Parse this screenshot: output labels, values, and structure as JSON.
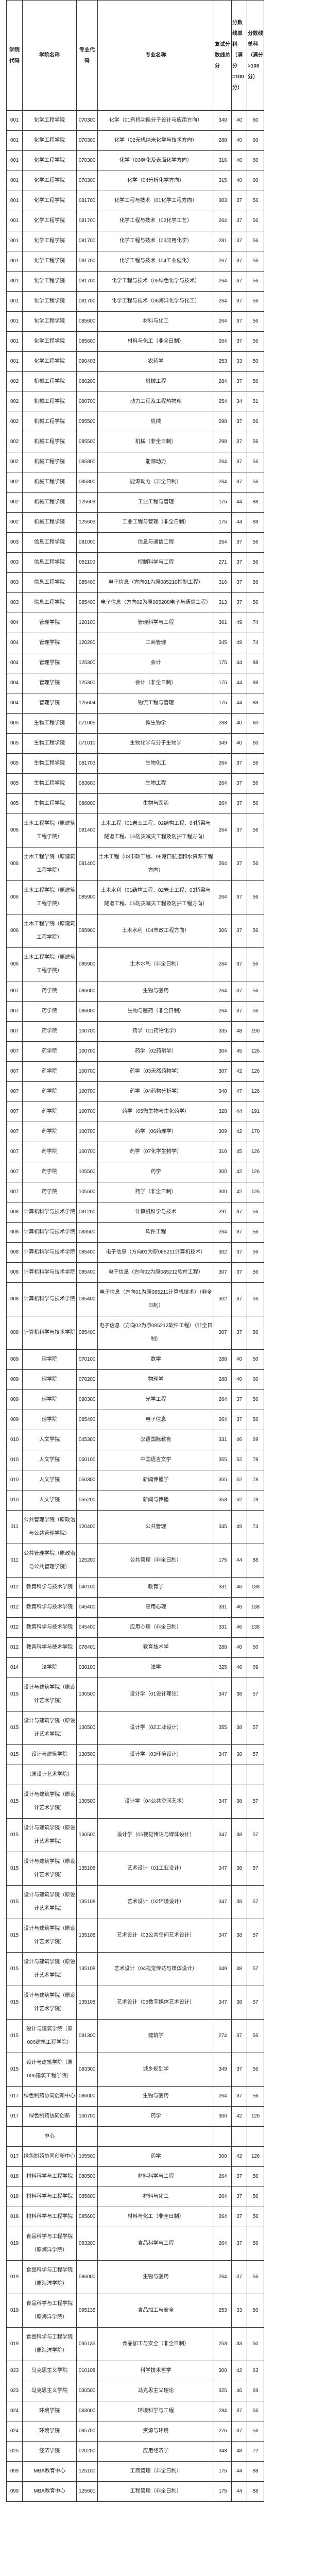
{
  "header": {
    "college_code": "学院代码",
    "college_name": "学院名称",
    "major_code": "专业代码",
    "major_name": "专业名称",
    "total_score": "复试分数线总分",
    "single_100": "分数线单科（满分=100分）",
    "single_over_100": "分数线单科（满分>100分）"
  },
  "rows": [
    [
      "001",
      "化学工程学院",
      "070300",
      "化学（01有机功能分子设计与应用方向）",
      "340",
      "40",
      "60"
    ],
    [
      "001",
      "化学工程学院",
      "070300",
      "化学（02无机纳米化学与技术方向）",
      "288",
      "40",
      "60"
    ],
    [
      "001",
      "化学工程学院",
      "070300",
      "化学（03催化及表面化学方向）",
      "316",
      "40",
      "60"
    ],
    [
      "001",
      "化学工程学院",
      "070300",
      "化学（04分析化学方向）",
      "315",
      "40",
      "60"
    ],
    [
      "001",
      "化学工程学院",
      "081700",
      "化学工程与技术（01化学工程方向）",
      "303",
      "37",
      "56"
    ],
    [
      "001",
      "化学工程学院",
      "081700",
      "化学工程与技术（02化学工艺）",
      "264",
      "37",
      "56"
    ],
    [
      "001",
      "化学工程学院",
      "081700",
      "化学工程与技术（03应用化学）",
      "281",
      "37",
      "56"
    ],
    [
      "001",
      "化学工程学院",
      "081700",
      "化学工程与技术（04工业催化）",
      "267",
      "37",
      "56"
    ],
    [
      "001",
      "化学工程学院",
      "081700",
      "化学工程与技术（05绿色化学与技术）",
      "264",
      "37",
      "56"
    ],
    [
      "001",
      "化学工程学院",
      "081700",
      "化学工程与技术（06海洋化学与化工）",
      "264",
      "37",
      "56"
    ],
    [
      "001",
      "化学工程学院",
      "085600",
      "材料与化工",
      "264",
      "37",
      "56"
    ],
    [
      "001",
      "化学工程学院",
      "085600",
      "材料与化工（非全日制）",
      "264",
      "37",
      "56"
    ],
    [
      "001",
      "化学工程学院",
      "090403",
      "农药学",
      "253",
      "33",
      "50"
    ],
    [
      "002",
      "机械工程学院",
      "080200",
      "机械工程",
      "284",
      "37",
      "56"
    ],
    [
      "002",
      "机械工程学院",
      "080700",
      "动力工程及工程热物理",
      "254",
      "34",
      "51"
    ],
    [
      "002",
      "机械工程学院",
      "085500",
      "机械",
      "298",
      "37",
      "56"
    ],
    [
      "002",
      "机械工程学院",
      "085500",
      "机械（非全日制）",
      "298",
      "37",
      "56"
    ],
    [
      "002",
      "机械工程学院",
      "085800",
      "能源动力",
      "264",
      "37",
      "56"
    ],
    [
      "002",
      "机械工程学院",
      "085800",
      "能源动力（非全日制）",
      "264",
      "37",
      "56"
    ],
    [
      "002",
      "机械工程学院",
      "125603",
      "工业工程与管理",
      "175",
      "44",
      "88"
    ],
    [
      "002",
      "机械工程学院",
      "125603",
      "工业工程与管理（非全日制）",
      "175",
      "44",
      "88"
    ],
    [
      "003",
      "信息工程学院",
      "081000",
      "信息与通信工程",
      "264",
      "37",
      "56"
    ],
    [
      "003",
      "信息工程学院",
      "081100",
      "控制科学与工程",
      "271",
      "37",
      "56"
    ],
    [
      "003",
      "信息工程学院",
      "085400",
      "电子信息（方向01为原085210控制工程）",
      "316",
      "37",
      "56"
    ],
    [
      "003",
      "信息工程学院",
      "085400",
      "电子信息（方向02为原085208电子与通信工程）",
      "313",
      "37",
      "56"
    ],
    [
      "004",
      "管理学院",
      "120100",
      "管理科学与工程",
      "361",
      "49",
      "74"
    ],
    [
      "004",
      "管理学院",
      "120200",
      "工商管理",
      "345",
      "49",
      "74"
    ],
    [
      "004",
      "管理学院",
      "125300",
      "会计",
      "175",
      "44",
      "88"
    ],
    [
      "004",
      "管理学院",
      "125300",
      "会计（非全日制）",
      "175",
      "44",
      "88"
    ],
    [
      "004",
      "管理学院",
      "125604",
      "物流工程与管理",
      "175",
      "44",
      "88"
    ],
    [
      "005",
      "生物工程学院",
      "071005",
      "微生物学",
      "288",
      "40",
      "60"
    ],
    [
      "005",
      "生物工程学院",
      "071010",
      "生物化学与分子生物学",
      "349",
      "40",
      "60"
    ],
    [
      "005",
      "生物工程学院",
      "081703",
      "生物化工",
      "264",
      "37",
      "56"
    ],
    [
      "005",
      "生物工程学院",
      "083600",
      "生物工程",
      "264",
      "37",
      "56"
    ],
    [
      "005",
      "生物工程学院",
      "086000",
      "生物与医药",
      "264",
      "37",
      "56"
    ],
    [
      "006",
      "土木工程学院（原建筑工程学院）",
      "081400",
      "土木工程（01岩土工程、02结构工程、04桥梁与隧道工程、05防灾减灾工程及防护工程方向）",
      "264",
      "37",
      "56"
    ],
    [
      "006",
      "土木工程学院（原建筑工程学院）",
      "081400",
      "土木工程（03市政工程、06港口航道和水资源工程方向）",
      "264",
      "37",
      "56"
    ],
    [
      "006",
      "土木工程学院（原建筑工程学院）",
      "085900",
      "土木水利（01结构工程、02岩土工程、03桥梁与隧道工程、05防灾减灾工程及防护工程方向）",
      "264",
      "37",
      "56"
    ],
    [
      "006",
      "土木工程学院（原建筑工程学院）",
      "085900",
      "土木水利（04市政工程方向）",
      "306",
      "37",
      "56"
    ],
    [
      "006",
      "土木工程学院（原建筑工程学院）",
      "085900",
      "土木水利（非全日制）",
      "264",
      "37",
      "56"
    ],
    [
      "007",
      "药学院",
      "086000",
      "生物与医药",
      "264",
      "37",
      "56"
    ],
    [
      "007",
      "药学院",
      "086000",
      "生物与医药（非全日制）",
      "264",
      "37",
      "56"
    ],
    [
      "007",
      "药学院",
      "100700",
      "药学（01药物化学）",
      "335",
      "48",
      "190"
    ],
    [
      "007",
      "药学院",
      "100700",
      "药学（02药剂学）",
      "304",
      "45",
      "126"
    ],
    [
      "007",
      "药学院",
      "100700",
      "药学（03天然药物学）",
      "307",
      "42",
      "126"
    ],
    [
      "007",
      "药学院",
      "100700",
      "药学（04药物分析学）",
      "340",
      "47",
      "126"
    ],
    [
      "007",
      "药学院",
      "100700",
      "药学（05微生物与生化药学）",
      "328",
      "44",
      "191"
    ],
    [
      "007",
      "药学院",
      "100700",
      "药学（06药理学）",
      "309",
      "42",
      "170"
    ],
    [
      "007",
      "药学院",
      "100700",
      "药学（07化学生物学）",
      "310",
      "45",
      "126"
    ],
    [
      "007",
      "药学院",
      "105500",
      "药学",
      "300",
      "42",
      "126"
    ],
    [
      "007",
      "药学院",
      "105500",
      "药学（非全日制）",
      "300",
      "42",
      "126"
    ],
    [
      "008",
      "计算机科学与技术学院",
      "081200",
      "计算机科学与技术",
      "291",
      "37",
      "56"
    ],
    [
      "008",
      "计算机科学与技术学院",
      "083500",
      "软件工程",
      "264",
      "37",
      "56"
    ],
    [
      "008",
      "计算机科学与技术学院",
      "085400",
      "电子信息（方向01为原085211计算机技术）",
      "302",
      "37",
      "56"
    ],
    [
      "008",
      "计算机科学与技术学院",
      "085400",
      "电子信息（方向02为原085212软件工程）",
      "307",
      "37",
      "56"
    ],
    [
      "008",
      "计算机科学与技术学院",
      "085400",
      "电子信息（方向01为原085211计算机技术）（非全日制）",
      "302",
      "37",
      "56"
    ],
    [
      "008",
      "计算机科学与技术学院",
      "085400",
      "电子信息（方向02为原085212软件工程）（非全日制）",
      "307",
      "37",
      "56"
    ],
    [
      "009",
      "理学院",
      "070100",
      "数学",
      "288",
      "40",
      "60"
    ],
    [
      "009",
      "理学院",
      "070200",
      "物理学",
      "288",
      "40",
      "60"
    ],
    [
      "009",
      "理学院",
      "080300",
      "光学工程",
      "264",
      "37",
      "56"
    ],
    [
      "009",
      "理学院",
      "085400",
      "电子信息",
      "264",
      "37",
      "56"
    ],
    [
      "010",
      "人文学院",
      "045300",
      "汉语国际教育",
      "331",
      "46",
      "69"
    ],
    [
      "010",
      "人文学院",
      "050100",
      "中国语言文学",
      "355",
      "52",
      "78"
    ],
    [
      "010",
      "人文学院",
      "050300",
      "新闻传播学",
      "355",
      "52",
      "78"
    ],
    [
      "010",
      "人文学院",
      "055200",
      "新闻与传播",
      "358",
      "52",
      "78"
    ],
    [
      "011",
      "公共管理学院（原政治与公共管理学院）",
      "120400",
      "公共管理",
      "345",
      "49",
      "74"
    ],
    [
      "011",
      "公共管理学院（原政治与公共管理学院）",
      "125200",
      "公共管理（非全日制）",
      "175",
      "44",
      "88"
    ],
    [
      "012",
      "教育科学与技术学院",
      "040100",
      "教育学",
      "331",
      "46",
      "138"
    ],
    [
      "012",
      "教育科学与技术学院",
      "045400",
      "应用心理",
      "331",
      "46",
      "138"
    ],
    [
      "012",
      "教育科学与技术学院",
      "045400",
      "应用心理（非全日制）",
      "331",
      "46",
      "138"
    ],
    [
      "012",
      "教育科学与技术学院",
      "078401",
      "教育技术学",
      "288",
      "40",
      "60"
    ],
    [
      "014",
      "法学院",
      "030100",
      "法学",
      "325",
      "46",
      "69"
    ],
    [
      "015",
      "设计与建筑学院（原设计艺术学院）",
      "130500",
      "设计学（01设计理论）",
      "347",
      "38",
      "57"
    ],
    [
      "015",
      "设计与建筑学院（原设计艺术学院）",
      "130500",
      "设计学（02工业设计）",
      "355",
      "38",
      "57"
    ],
    [
      "015",
      "设计与建筑学院",
      "130500",
      "设计学（03环境设计）",
      "347",
      "38",
      "57"
    ],
    [
      "",
      "（原设计艺术学院）",
      "",
      "",
      "",
      "",
      ""
    ],
    [
      "015",
      "设计与建筑学院（原设计艺术学院）",
      "130500",
      "设计学（04公共空间艺术）",
      "347",
      "38",
      "57"
    ],
    [
      "015",
      "设计与建筑学院（原设计艺术学院）",
      "130500",
      "设计学（05视觉传达与媒体设计）",
      "347",
      "38",
      "57"
    ],
    [
      "015",
      "设计与建筑学院（原设计艺术学院）",
      "135108",
      "艺术设计（01工业设计）",
      "347",
      "38",
      "57"
    ],
    [
      "015",
      "设计与建筑学院（原设计艺术学院）",
      "135108",
      "艺术设计（02环境设计）",
      "347",
      "38",
      "57"
    ],
    [
      "015",
      "设计与建筑学院（原设计艺术学院）",
      "135108",
      "艺术设计（03公共空间艺术设计）",
      "347",
      "38",
      "57"
    ],
    [
      "015",
      "设计与建筑学院（原设计艺术学院）",
      "135108",
      "艺术设计（04视觉传达与媒体设计）",
      "349",
      "38",
      "57"
    ],
    [
      "015",
      "设计与建筑学院（原设计艺术学院）",
      "135108",
      "艺术设计（05数字媒体艺术设计）",
      "347",
      "38",
      "57"
    ],
    [
      "015",
      "设计与建筑学院（原006建筑工程学院）",
      "081300",
      "建筑学",
      "274",
      "37",
      "56"
    ],
    [
      "015",
      "设计与建筑学院（原006建筑工程学院）",
      "083300",
      "城乡规划学",
      "349",
      "37",
      "56"
    ],
    [
      "017",
      "绿色制药协同创新中心",
      "086000",
      "生物与医药",
      "264",
      "37",
      "56"
    ],
    [
      "017",
      "绿色制药协同创新",
      "100700",
      "药学",
      "300",
      "42",
      "126"
    ],
    [
      "",
      "中心",
      "",
      "",
      "",
      "",
      ""
    ],
    [
      "017",
      "绿色制药协同创新中心",
      "105500",
      "药学",
      "300",
      "42",
      "126"
    ],
    [
      "018",
      "材料科学与工程学院",
      "080500",
      "材料科学与工程",
      "264",
      "37",
      "56"
    ],
    [
      "018",
      "材料科学与工程学院",
      "085600",
      "材料与化工",
      "264",
      "37",
      "56"
    ],
    [
      "018",
      "材料科学与工程学院",
      "085600",
      "材料与化工（非全日制）",
      "264",
      "37",
      "56"
    ],
    [
      "019",
      "食品科学与工程学院（原海洋学院）",
      "083200",
      "食品科学与工程",
      "264",
      "37",
      "56"
    ],
    [
      "019",
      "食品科学与工程学院（原海洋学院）",
      "086000",
      "生物与医药",
      "264",
      "37",
      "56"
    ],
    [
      "019",
      "食品科学与工程学院（原海洋学院）",
      "095135",
      "食品加工与安全",
      "253",
      "33",
      "50"
    ],
    [
      "019",
      "食品科学与工程学院（原海洋学院）",
      "095135",
      "食品加工与安全（非全日制）",
      "253",
      "33",
      "50"
    ],
    [
      "023",
      "马克思主义学院",
      "010108",
      "科学技术哲学",
      "300",
      "42",
      "63"
    ],
    [
      "023",
      "马克思主义学院",
      "030500",
      "马克思主义理论",
      "325",
      "46",
      "69"
    ],
    [
      "024",
      "环境学院",
      "083000",
      "环境科学与工程",
      "284",
      "37",
      "56"
    ],
    [
      "024",
      "环境学院",
      "085700",
      "资源与环境",
      "276",
      "37",
      "56"
    ],
    [
      "025",
      "经济学院",
      "020200",
      "应用经济学",
      "343",
      "48",
      "72"
    ],
    [
      "099",
      "MBA教育中心",
      "125100",
      "工商管理（非全日制）",
      "175",
      "44",
      "88"
    ],
    [
      "099",
      "MBA教育中心",
      "125601",
      "工程管理（非全日制）",
      "175",
      "44",
      "88"
    ]
  ]
}
